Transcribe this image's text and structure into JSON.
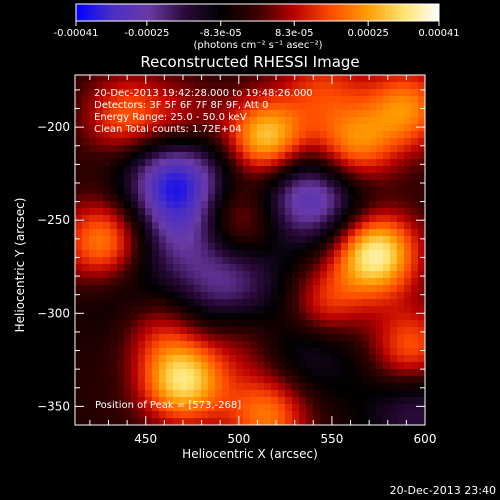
{
  "colorbar": {
    "colors": [
      "#0000ff",
      "#4a2fc4",
      "#6a3aa6",
      "#2a0a3a",
      "#000000",
      "#3a0000",
      "#b80000",
      "#ff4a00",
      "#ff9a00",
      "#ffe36a",
      "#ffffff"
    ],
    "ticks": [
      "-0.00041",
      "-0.00025",
      "-8.3e-05",
      "8.3e-05",
      "0.00025",
      "0.00041"
    ],
    "unit_label": "(photons cm⁻² s⁻¹ asec⁻²)"
  },
  "chart_data": {
    "type": "heatmap",
    "title": "Reconstructed RHESSI Image",
    "xlabel": "Heliocentric X (arcsec)",
    "ylabel": "Heliocentric Y (arcsec)",
    "xlim": [
      412,
      600
    ],
    "ylim": [
      -360,
      -172
    ],
    "xticks": [
      450,
      500,
      550,
      600
    ],
    "yticks": [
      -200,
      -250,
      -300,
      -350
    ],
    "ytick_labels": [
      "−200",
      "−250",
      "−300",
      "−350"
    ],
    "annotations": [
      "20-Dec-2013 19:42:28.000 to 19:48:26.000",
      "Detectors: 3F 5F 6F 7F 8F 9F, Att 0",
      "Energy Range: 25.0 - 50.0 keV",
      "Clean    Total counts: 1.72E+04"
    ],
    "peak_label": "Position of Peak = [573,-268]",
    "peak_position": [
      573,
      -268
    ],
    "sources": [
      {
        "x": 515,
        "y": -208,
        "value": 0.00041
      },
      {
        "x": 573,
        "y": -268,
        "value": 0.00041
      },
      {
        "x": 560,
        "y": -212,
        "value": 0.0003
      },
      {
        "x": 545,
        "y": -298,
        "value": 0.0003
      },
      {
        "x": 428,
        "y": -262,
        "value": 0.00028
      },
      {
        "x": 470,
        "y": -336,
        "value": 0.00036
      },
      {
        "x": 515,
        "y": -355,
        "value": 0.00024
      },
      {
        "x": 440,
        "y": -195,
        "value": 0.00022
      },
      {
        "x": 470,
        "y": -200,
        "value": 0.00018
      },
      {
        "x": 590,
        "y": -190,
        "value": 0.00025
      },
      {
        "x": 592,
        "y": -320,
        "value": 0.00024
      },
      {
        "x": 500,
        "y": -248,
        "value": 0.00026
      },
      {
        "x": 455,
        "y": -305,
        "value": 0.00016
      },
      {
        "x": 505,
        "y": -312,
        "value": 0.00012
      },
      {
        "x": 545,
        "y": -178,
        "value": 0.00015
      }
    ],
    "negative_regions": [
      {
        "x": 466,
        "y": -222,
        "value": -0.0003
      },
      {
        "x": 545,
        "y": -235,
        "value": -0.00026
      },
      {
        "x": 540,
        "y": -310,
        "value": -0.00022
      },
      {
        "x": 495,
        "y": -285,
        "value": -0.0002
      },
      {
        "x": 470,
        "y": -250,
        "value": -0.00018
      },
      {
        "x": 515,
        "y": -232,
        "value": -0.00016
      },
      {
        "x": 595,
        "y": -350,
        "value": -0.00016
      },
      {
        "x": 445,
        "y": -290,
        "value": -0.00012
      }
    ]
  },
  "footer": {
    "timestamp": "20-Dec-2013 23:40"
  }
}
